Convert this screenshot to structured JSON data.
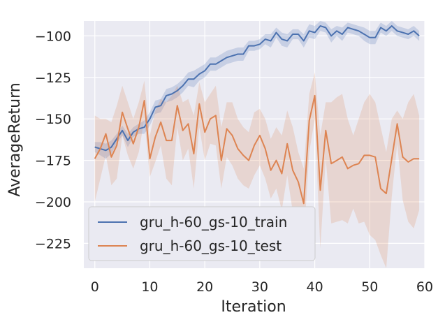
{
  "chart_data": {
    "type": "line",
    "xlabel": "Iteration",
    "ylabel": "AverageReturn",
    "xlim": [
      -2,
      60
    ],
    "ylim": [
      -240,
      -91
    ],
    "xticks": [
      0,
      10,
      20,
      30,
      40,
      50,
      60
    ],
    "yticks": [
      -225,
      -200,
      -175,
      -150,
      -125,
      -100
    ],
    "grid": true,
    "background": "#eaeaf2",
    "legend_placement": "lower-left",
    "series": [
      {
        "name": "gru_h-60_gs-10_train",
        "color": "#4c72b0",
        "x": [
          0,
          1,
          2,
          3,
          4,
          5,
          6,
          7,
          8,
          9,
          10,
          11,
          12,
          13,
          14,
          15,
          16,
          17,
          18,
          19,
          20,
          21,
          22,
          23,
          24,
          25,
          26,
          27,
          28,
          29,
          30,
          31,
          32,
          33,
          34,
          35,
          36,
          37,
          38,
          39,
          40,
          41,
          42,
          43,
          44,
          45,
          46,
          47,
          48,
          49,
          50,
          51,
          52,
          53,
          54,
          55,
          56,
          57,
          58,
          59
        ],
        "y": [
          -167,
          -168,
          -169,
          -167,
          -162,
          -157,
          -163,
          -158,
          -156,
          -155,
          -150,
          -143,
          -142,
          -136,
          -135,
          -133,
          -130,
          -126,
          -126,
          -123,
          -121,
          -117,
          -117,
          -115,
          -113,
          -112,
          -111,
          -111,
          -106,
          -106,
          -105,
          -102,
          -103,
          -98,
          -102,
          -103,
          -99,
          -99,
          -103,
          -97,
          -98,
          -94,
          -95,
          -100,
          -97,
          -99,
          -95,
          -96,
          -97,
          -99,
          -101,
          -101,
          -95,
          -97,
          -94,
          -97,
          -98,
          -99,
          -97,
          -100
        ],
        "upper": [
          -164,
          -164,
          -165,
          -163,
          -159,
          -154,
          -159,
          -155,
          -153,
          -151,
          -146,
          -139,
          -138,
          -132,
          -131,
          -129,
          -126,
          -122,
          -121,
          -119,
          -117,
          -113,
          -113,
          -111,
          -109,
          -108,
          -107,
          -107,
          -103,
          -103,
          -102,
          -99,
          -99,
          -95,
          -98,
          -99,
          -96,
          -96,
          -99,
          -93,
          -94,
          -91,
          -92,
          -96,
          -94,
          -95,
          -92,
          -93,
          -94,
          -95,
          -97,
          -97,
          -92,
          -94,
          -91,
          -94,
          -95,
          -96,
          -94,
          -97
        ],
        "lower": [
          -170,
          -172,
          -174,
          -171,
          -165,
          -160,
          -167,
          -161,
          -159,
          -159,
          -154,
          -147,
          -146,
          -140,
          -139,
          -137,
          -134,
          -130,
          -131,
          -127,
          -125,
          -121,
          -121,
          -119,
          -117,
          -116,
          -115,
          -115,
          -109,
          -109,
          -108,
          -105,
          -107,
          -101,
          -106,
          -107,
          -102,
          -102,
          -107,
          -101,
          -102,
          -97,
          -98,
          -104,
          -100,
          -103,
          -98,
          -99,
          -100,
          -103,
          -105,
          -105,
          -98,
          -100,
          -97,
          -100,
          -101,
          -102,
          -100,
          -103
        ]
      },
      {
        "name": "gru_h-60_gs-10_test",
        "color": "#dd8452",
        "x": [
          0,
          1,
          2,
          3,
          4,
          5,
          6,
          7,
          8,
          9,
          10,
          11,
          12,
          13,
          14,
          15,
          16,
          17,
          18,
          19,
          20,
          21,
          22,
          23,
          24,
          25,
          26,
          27,
          28,
          29,
          30,
          31,
          32,
          33,
          34,
          35,
          36,
          37,
          38,
          39,
          40,
          41,
          42,
          43,
          44,
          45,
          46,
          47,
          48,
          49,
          50,
          51,
          52,
          53,
          54,
          55,
          56,
          57,
          58,
          59
        ],
        "y": [
          -174,
          -168,
          -159,
          -173,
          -166,
          -146,
          -156,
          -165,
          -155,
          -139,
          -174,
          -161,
          -152,
          -163,
          -163,
          -142,
          -157,
          -153,
          -171,
          -141,
          -158,
          -150,
          -148,
          -175,
          -156,
          -160,
          -168,
          -172,
          -175,
          -166,
          -160,
          -168,
          -181,
          -175,
          -183,
          -165,
          -181,
          -188,
          -201,
          -151,
          -136,
          -193,
          -157,
          -177,
          -175,
          -173,
          -180,
          -178,
          -177,
          -172,
          -172,
          -173,
          -192,
          -195,
          -174,
          -153,
          -173,
          -176,
          -174,
          -174
        ],
        "upper": [
          -148,
          -150,
          -150,
          -152,
          -142,
          -130,
          -140,
          -150,
          -140,
          -127,
          -160,
          -145,
          -138,
          -140,
          -136,
          -130,
          -140,
          -138,
          -148,
          -128,
          -140,
          -135,
          -130,
          -155,
          -140,
          -140,
          -150,
          -155,
          -158,
          -146,
          -144,
          -150,
          -162,
          -155,
          -160,
          -145,
          -155,
          -170,
          -180,
          -135,
          -122,
          -160,
          -140,
          -140,
          -137,
          -135,
          -150,
          -160,
          -150,
          -140,
          -135,
          -140,
          -155,
          -170,
          -150,
          -145,
          -150,
          -140,
          -135,
          -148
        ],
        "lower": [
          -200,
          -186,
          -172,
          -190,
          -186,
          -160,
          -172,
          -180,
          -170,
          -150,
          -185,
          -176,
          -166,
          -186,
          -190,
          -155,
          -175,
          -168,
          -192,
          -155,
          -175,
          -165,
          -166,
          -192,
          -173,
          -178,
          -186,
          -190,
          -192,
          -184,
          -178,
          -186,
          -198,
          -192,
          -205,
          -184,
          -206,
          -208,
          -224,
          -170,
          -150,
          -228,
          -174,
          -213,
          -212,
          -211,
          -213,
          -204,
          -213,
          -212,
          -220,
          -223,
          -232,
          -240,
          -197,
          -165,
          -199,
          -212,
          -216,
          -205
        ]
      }
    ]
  }
}
